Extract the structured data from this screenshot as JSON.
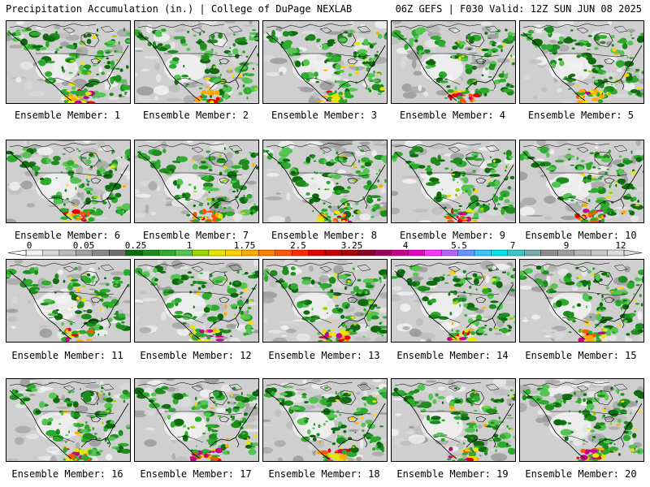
{
  "header": {
    "left": "Precipitation Accumulation (in.) | College of DuPage NEXLAB",
    "right": "06Z GEFS | F030 Valid: 12Z SUN JUN 08 2025"
  },
  "caption_prefix": "Ensemble Member: ",
  "members": [
    "1",
    "2",
    "3",
    "4",
    "5",
    "6",
    "7",
    "8",
    "9",
    "10",
    "11",
    "12",
    "13",
    "14",
    "15",
    "16",
    "17",
    "18",
    "19",
    "20"
  ],
  "legend": {
    "labels": [
      "0",
      "0.05",
      "0.25",
      "1",
      "1.75",
      "2.5",
      "3.25",
      "4",
      "5.5",
      "7",
      "9",
      "12"
    ],
    "colors": [
      "#f0f0f0",
      "#d6d6d6",
      "#bcbcbc",
      "#a2a2a2",
      "#888888",
      "#6e6e6e",
      "#0f6b0f",
      "#1e8c1e",
      "#2eaa2e",
      "#55c455",
      "#9bd400",
      "#e6e600",
      "#ffd200",
      "#ffaa00",
      "#ff7f00",
      "#ff5500",
      "#ff2a00",
      "#e60000",
      "#c80000",
      "#aa0000",
      "#8c0028",
      "#a0005a",
      "#c8008c",
      "#e600c8",
      "#ff32ff",
      "#b464ff",
      "#6496ff",
      "#32c8ff",
      "#00e6e6",
      "#3cc8c8",
      "#78aaaa",
      "#8c8c8c",
      "#a0a0a0",
      "#b4b4b4",
      "#c8c8c8",
      "#dcdcdc"
    ]
  }
}
